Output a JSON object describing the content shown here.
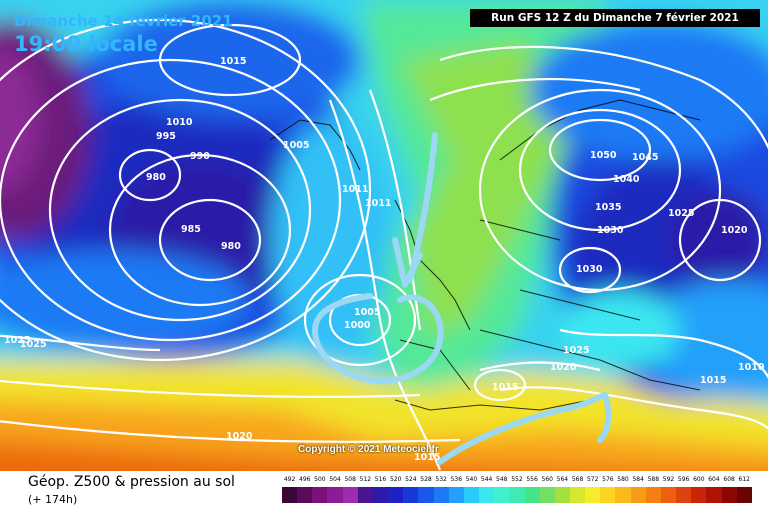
{
  "header": {
    "date": "Dimanche 14 février 2021",
    "local_time": "19:00 locale",
    "run": "Run GFS 12 Z du Dimanche 7 février 2021"
  },
  "map": {
    "copyright": "Copyright © 2021 Meteociel.fr",
    "pressure_labels": [
      "1015",
      "1010",
      "1005",
      "1000",
      "995",
      "990",
      "980",
      "985",
      "980",
      "1005",
      "1011",
      "1011",
      "1025",
      "1025",
      "1005",
      "1000",
      "1020",
      "1050",
      "1045",
      "1040",
      "1035",
      "1030",
      "1030",
      "1025",
      "1020",
      "1025",
      "1020",
      "1015",
      "1015",
      "1010",
      "1015"
    ]
  },
  "footer": {
    "title": "Géop. Z500 & pression au sol",
    "subtitle": "(+ 174h)"
  },
  "legend": {
    "values": [
      "492",
      "496",
      "500",
      "504",
      "508",
      "512",
      "516",
      "520",
      "524",
      "528",
      "532",
      "536",
      "540",
      "544",
      "548",
      "552",
      "556",
      "560",
      "564",
      "568",
      "572",
      "576",
      "580",
      "584",
      "588",
      "592",
      "596",
      "600",
      "604",
      "608",
      "612"
    ],
    "colors": [
      "#3a0838",
      "#5c0a5c",
      "#7a127a",
      "#8c1c96",
      "#9c2cb0",
      "#4a1490",
      "#2e1aa8",
      "#1e22c0",
      "#1a38d8",
      "#1a58ec",
      "#1c7af4",
      "#22a0fa",
      "#2ccaf8",
      "#3ae6f0",
      "#40f0d0",
      "#3cecb0",
      "#44e488",
      "#74e060",
      "#a6e040",
      "#d4e830",
      "#f6ec2c",
      "#fcd424",
      "#fcb81c",
      "#f89c18",
      "#f48014",
      "#ec6010",
      "#e0420c",
      "#cc2408",
      "#b01208",
      "#8c0606",
      "#680404"
    ]
  }
}
